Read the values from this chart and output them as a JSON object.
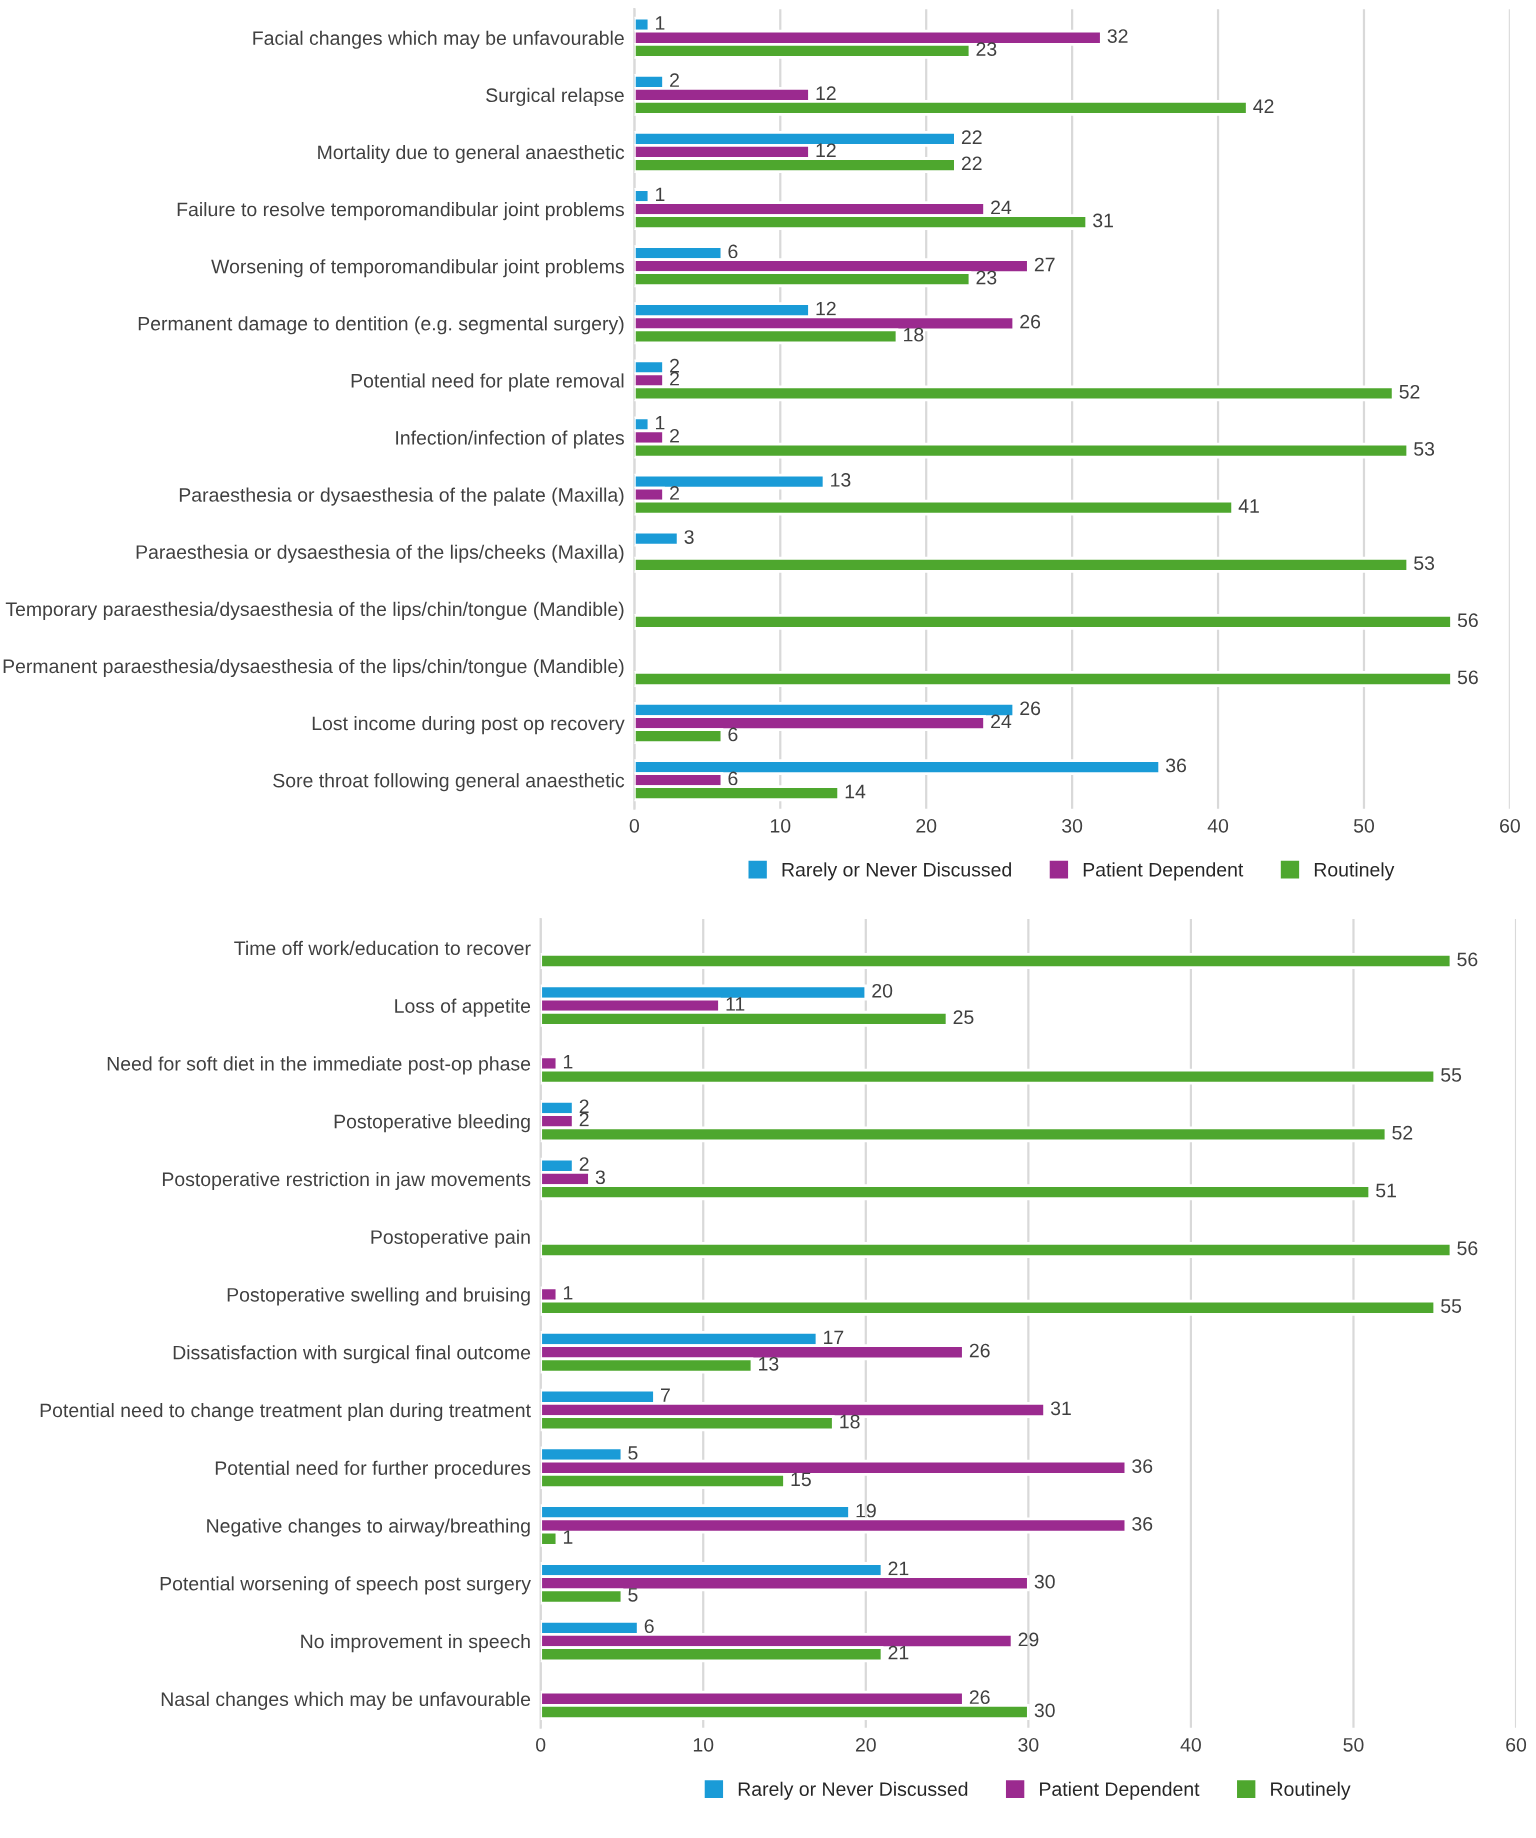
{
  "chart_data": [
    {
      "type": "bar",
      "orientation": "horizontal",
      "categories": [
        "Facial changes which may be unfavourable",
        "Surgical relapse",
        "Mortality due to general anaesthetic",
        "Failure to resolve temporomandibular joint problems",
        "Worsening of temporomandibular joint problems",
        "Permanent damage to dentition (e.g. segmental surgery)",
        "Potential need for plate removal",
        "Infection/infection of plates",
        "Paraesthesia or dysaesthesia of the palate (Maxilla)",
        "Paraesthesia or dysaesthesia of the lips/cheeks (Maxilla)",
        "Temporary paraesthesia/dysaesthesia of the lips/chin/tongue (Mandible)",
        "Permanent paraesthesia/dysaesthesia of the lips/chin/tongue (Mandible)",
        "Lost income during post op recovery",
        "Sore throat following general anaesthetic"
      ],
      "series": [
        {
          "name": "Rarely or Never Discussed",
          "color": "#1a9bd7",
          "values": [
            1,
            2,
            22,
            1,
            6,
            12,
            2,
            1,
            13,
            3,
            0,
            0,
            26,
            36
          ],
          "value_labels": [
            "1",
            "2",
            "22",
            "1",
            "6",
            "12",
            "2",
            "1",
            "13",
            "3",
            null,
            null,
            "26",
            "36"
          ]
        },
        {
          "name": "Patient Dependent",
          "color": "#9b2a8f",
          "values": [
            32,
            12,
            12,
            24,
            27,
            26,
            2,
            2,
            2,
            0,
            0,
            0,
            24,
            6
          ],
          "value_labels": [
            "32",
            "12",
            "12",
            "24",
            "27",
            "26",
            "2",
            "2",
            "2",
            null,
            null,
            null,
            "24",
            "6"
          ]
        },
        {
          "name": "Routinely",
          "color": "#4ea72e",
          "values": [
            23,
            42,
            22,
            31,
            23,
            18,
            52,
            53,
            41,
            53,
            56,
            56,
            6,
            14
          ],
          "value_labels": [
            "23",
            "42",
            "22",
            "31",
            "23",
            "18",
            "52",
            "53",
            "41",
            "53",
            "56",
            "56",
            "6",
            "14"
          ]
        }
      ],
      "xlim": [
        0,
        60
      ],
      "xticks": [
        0,
        10,
        20,
        30,
        40,
        50,
        60
      ],
      "grid": "x",
      "legend": "bottom"
    },
    {
      "type": "bar",
      "orientation": "horizontal",
      "categories": [
        "Time off work/education to recover",
        "Loss of appetite",
        "Need for soft diet in the immediate post-op phase",
        "Postoperative bleeding",
        "Postoperative restriction in jaw movements",
        "Postoperative pain",
        "Postoperative swelling and bruising",
        "Dissatisfaction with surgical final outcome",
        "Potential need to change treatment plan during treatment",
        "Potential need for further procedures",
        "Negative changes to airway/breathing",
        "Potential worsening of speech post surgery",
        "No improvement in speech",
        "Nasal changes which may be unfavourable"
      ],
      "series": [
        {
          "name": "Rarely or Never Discussed",
          "color": "#1a9bd7",
          "values": [
            0,
            20,
            0,
            2,
            2,
            0,
            0,
            17,
            7,
            5,
            19,
            21,
            6,
            0
          ],
          "value_labels": [
            null,
            "20",
            null,
            "2",
            "2",
            null,
            null,
            "17",
            "7",
            "5",
            "19",
            "21",
            "6",
            null
          ]
        },
        {
          "name": "Patient Dependent",
          "color": "#9b2a8f",
          "values": [
            0,
            11,
            1,
            2,
            3,
            0,
            1,
            26,
            31,
            36,
            36,
            30,
            29,
            26
          ],
          "value_labels": [
            null,
            "11",
            "1",
            "2",
            "3",
            null,
            "1",
            "26",
            "31",
            "36",
            "36",
            "30",
            "29",
            "26"
          ]
        },
        {
          "name": "Routinely",
          "color": "#4ea72e",
          "values": [
            56,
            25,
            55,
            52,
            51,
            56,
            55,
            13,
            18,
            15,
            1,
            5,
            21,
            30
          ],
          "value_labels": [
            "56",
            "25",
            "55",
            "52",
            "51",
            "56",
            "55",
            "13",
            "18",
            "15",
            "1",
            "5",
            "21",
            "30"
          ]
        }
      ],
      "xlim": [
        0,
        60
      ],
      "xticks": [
        0,
        10,
        20,
        30,
        40,
        50,
        60
      ],
      "grid": "x",
      "legend": "bottom"
    }
  ]
}
